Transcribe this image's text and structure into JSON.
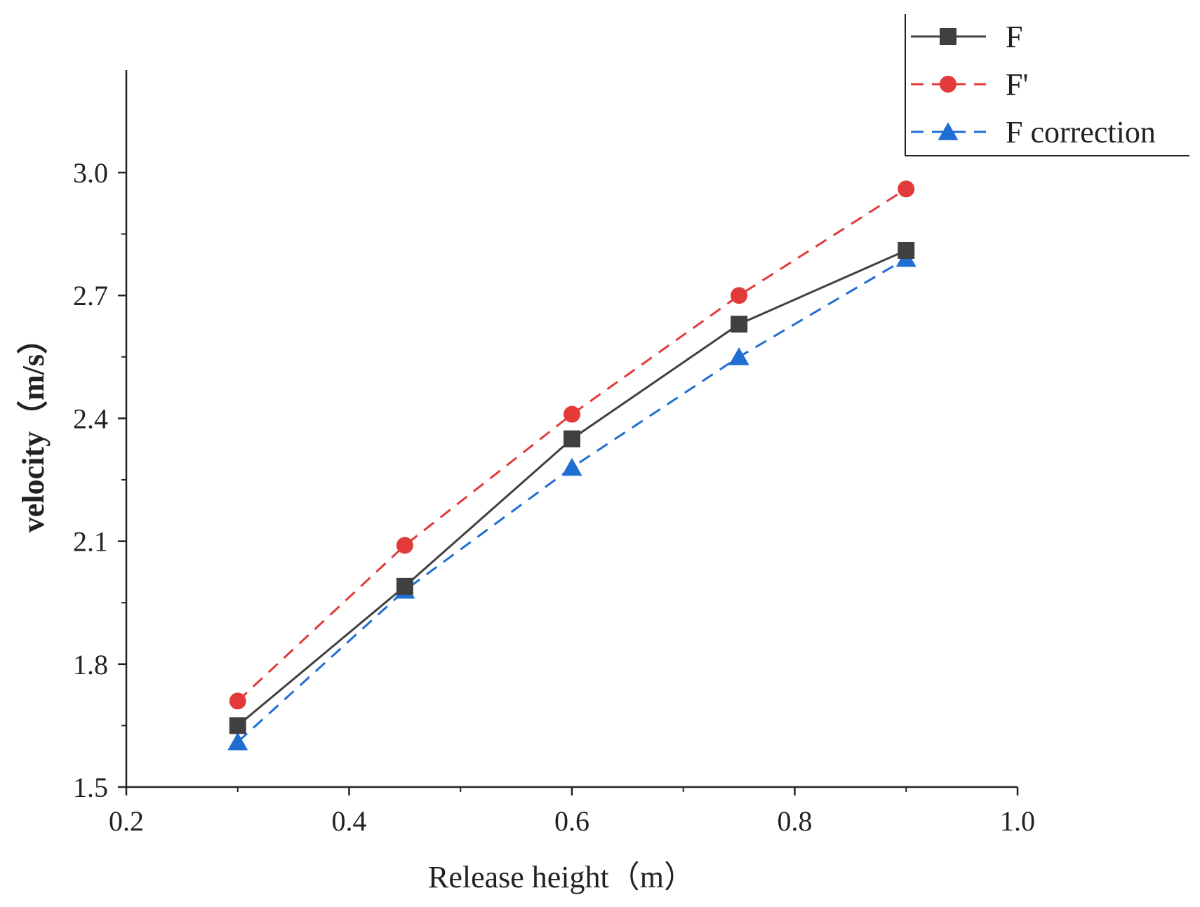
{
  "chart_data": {
    "type": "line",
    "xlabel": "Release height（m）",
    "ylabel": "velocity（m/s）",
    "xlim": [
      0.2,
      1.0
    ],
    "ylim": [
      1.5,
      3.25
    ],
    "x_ticks": [
      0.2,
      0.4,
      0.6,
      0.8,
      1.0
    ],
    "x_tick_labels": [
      "0.2",
      "0.4",
      "0.6",
      "0.8",
      "1.0"
    ],
    "y_ticks": [
      1.5,
      1.8,
      2.1,
      2.4,
      2.7,
      3.0
    ],
    "y_tick_labels": [
      "1.5",
      "1.8",
      "2.1",
      "2.4",
      "2.7",
      "3.0"
    ],
    "grid": false,
    "legend_position": "top-right",
    "x": [
      0.3,
      0.45,
      0.6,
      0.75,
      0.9
    ],
    "series": [
      {
        "name": "F",
        "values": [
          1.65,
          1.99,
          2.35,
          2.63,
          2.81
        ],
        "color": "#404040",
        "line": "solid",
        "marker": "square"
      },
      {
        "name": "F'",
        "values": [
          1.71,
          2.09,
          2.41,
          2.7,
          2.96
        ],
        "color": "#e23a3a",
        "line": "dashed",
        "marker": "circle"
      },
      {
        "name": "F correction",
        "values": [
          1.61,
          1.98,
          2.28,
          2.55,
          2.79
        ],
        "color": "#1f6ed4",
        "line": "dashed",
        "marker": "triangle"
      }
    ]
  }
}
